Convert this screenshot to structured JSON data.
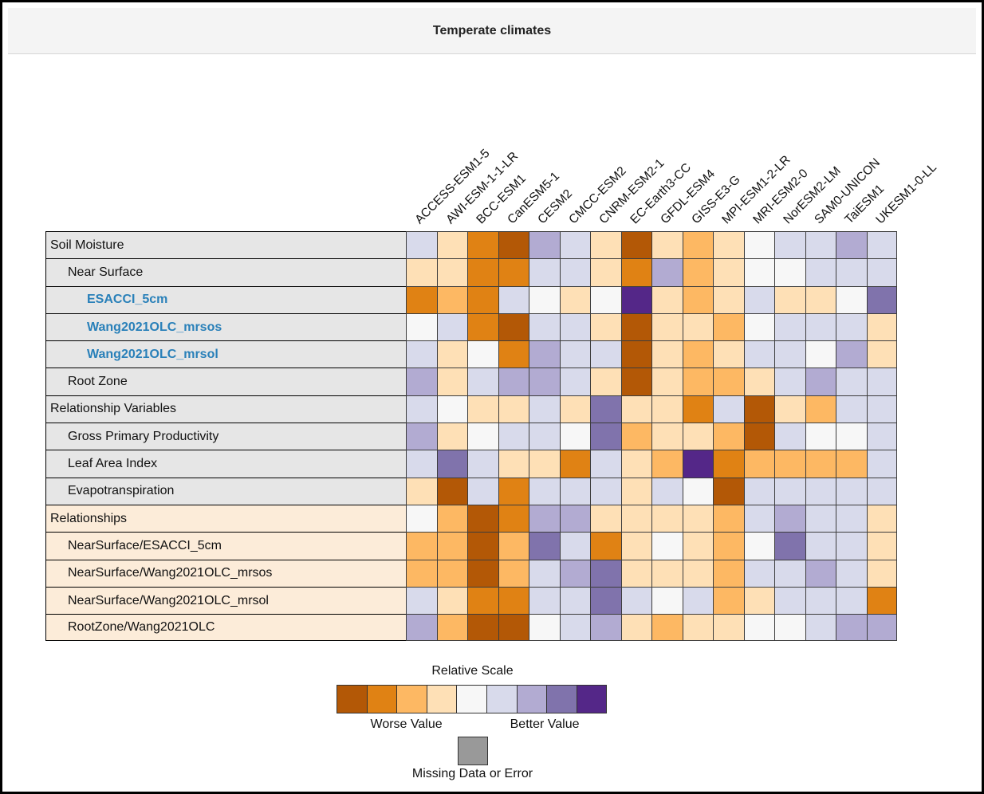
{
  "title": "Temperate climates",
  "colors": {
    "scale": [
      "#b35806",
      "#e08214",
      "#fdb863",
      "#fee0b6",
      "#f7f7f7",
      "#d8daeb",
      "#b2abd2",
      "#8073ac",
      "#542788"
    ],
    "missing": "#999999",
    "section_gray": "#e6e6e6",
    "section_peach": "#fcecd9",
    "link_blue": "#2980b9"
  },
  "legend": {
    "scale_title": "Relative Scale",
    "worse_label": "Worse Value",
    "better_label": "Better Value",
    "missing_label": "Missing Data or Error"
  },
  "chart_data": {
    "type": "heatmap",
    "title": "Temperate climates",
    "value_meaning": "index into 9-step relative color scale: 0 = worst value (dark orange), 8 = best value (dark purple)",
    "columns": [
      "ACCESS-ESM1-5",
      "AWI-ESM-1-1-LR",
      "BCC-ESM1",
      "CanESM5-1",
      "CESM2",
      "CMCC-ESM2",
      "CNRM-ESM2-1",
      "EC-Earth3-CC",
      "GFDL-ESM4",
      "GISS-E3-G",
      "MPI-ESM1-2-LR",
      "MRI-ESM2-0",
      "NorESM2-LM",
      "SAM0-UNICON",
      "TaiESM1",
      "UKESM1-0-LL"
    ],
    "rows": [
      {
        "label": "Soil Moisture",
        "indent": 0,
        "link": false,
        "section": "gray",
        "values": [
          5,
          3,
          1,
          0,
          6,
          5,
          3,
          0,
          3,
          2,
          3,
          4,
          5,
          5,
          6,
          5
        ]
      },
      {
        "label": "Near Surface",
        "indent": 1,
        "link": false,
        "section": "gray",
        "values": [
          3,
          3,
          1,
          1,
          5,
          5,
          3,
          1,
          6,
          2,
          3,
          4,
          4,
          5,
          5,
          5
        ]
      },
      {
        "label": "ESACCI_5cm",
        "indent": 2,
        "link": true,
        "section": "gray",
        "values": [
          1,
          2,
          1,
          5,
          4,
          3,
          4,
          8,
          3,
          2,
          3,
          5,
          3,
          3,
          4,
          7
        ]
      },
      {
        "label": "Wang2021OLC_mrsos",
        "indent": 2,
        "link": true,
        "section": "gray",
        "values": [
          4,
          5,
          1,
          0,
          5,
          5,
          3,
          0,
          3,
          3,
          2,
          4,
          5,
          5,
          5,
          3
        ]
      },
      {
        "label": "Wang2021OLC_mrsol",
        "indent": 2,
        "link": true,
        "section": "gray",
        "values": [
          5,
          3,
          4,
          1,
          6,
          5,
          5,
          0,
          3,
          2,
          3,
          5,
          5,
          4,
          6,
          3
        ]
      },
      {
        "label": "Root Zone",
        "indent": 1,
        "link": false,
        "section": "gray",
        "values": [
          6,
          3,
          5,
          6,
          6,
          5,
          3,
          0,
          3,
          2,
          2,
          3,
          5,
          6,
          5,
          5
        ]
      },
      {
        "label": "Relationship Variables",
        "indent": 0,
        "link": false,
        "section": "gray",
        "values": [
          5,
          4,
          3,
          3,
          5,
          3,
          7,
          3,
          3,
          1,
          5,
          0,
          3,
          2,
          5,
          5
        ]
      },
      {
        "label": "Gross Primary Productivity",
        "indent": 1,
        "link": false,
        "section": "gray",
        "values": [
          6,
          3,
          4,
          5,
          5,
          4,
          7,
          2,
          3,
          3,
          2,
          0,
          5,
          4,
          4,
          5
        ]
      },
      {
        "label": "Leaf Area Index",
        "indent": 1,
        "link": false,
        "section": "gray",
        "values": [
          5,
          7,
          5,
          3,
          3,
          1,
          5,
          3,
          2,
          8,
          1,
          2,
          2,
          2,
          2,
          5
        ]
      },
      {
        "label": "Evapotranspiration",
        "indent": 1,
        "link": false,
        "section": "gray",
        "values": [
          3,
          0,
          5,
          1,
          5,
          5,
          5,
          3,
          5,
          4,
          0,
          5,
          5,
          5,
          5,
          5
        ]
      },
      {
        "label": "Relationships",
        "indent": 0,
        "link": false,
        "section": "peach",
        "values": [
          4,
          2,
          0,
          1,
          6,
          6,
          3,
          3,
          3,
          3,
          2,
          5,
          6,
          5,
          5,
          3
        ]
      },
      {
        "label": "NearSurface/ESACCI_5cm",
        "indent": 1,
        "link": false,
        "section": "peach",
        "values": [
          2,
          2,
          0,
          2,
          7,
          5,
          1,
          3,
          4,
          3,
          2,
          4,
          7,
          5,
          5,
          3
        ]
      },
      {
        "label": "NearSurface/Wang2021OLC_mrsos",
        "indent": 1,
        "link": false,
        "section": "peach",
        "values": [
          2,
          2,
          0,
          2,
          5,
          6,
          7,
          3,
          3,
          3,
          2,
          5,
          5,
          6,
          5,
          3
        ]
      },
      {
        "label": "NearSurface/Wang2021OLC_mrsol",
        "indent": 1,
        "link": false,
        "section": "peach",
        "values": [
          5,
          3,
          1,
          1,
          5,
          5,
          7,
          5,
          4,
          5,
          2,
          3,
          5,
          5,
          5,
          1
        ]
      },
      {
        "label": "RootZone/Wang2021OLC",
        "indent": 1,
        "link": false,
        "section": "peach",
        "values": [
          6,
          2,
          0,
          0,
          4,
          5,
          6,
          3,
          2,
          3,
          3,
          4,
          4,
          5,
          6,
          6
        ]
      }
    ],
    "legend": {
      "scale_title": "Relative Scale",
      "worse_label": "Worse Value",
      "better_label": "Better Value",
      "missing_label": "Missing Data or Error"
    }
  }
}
